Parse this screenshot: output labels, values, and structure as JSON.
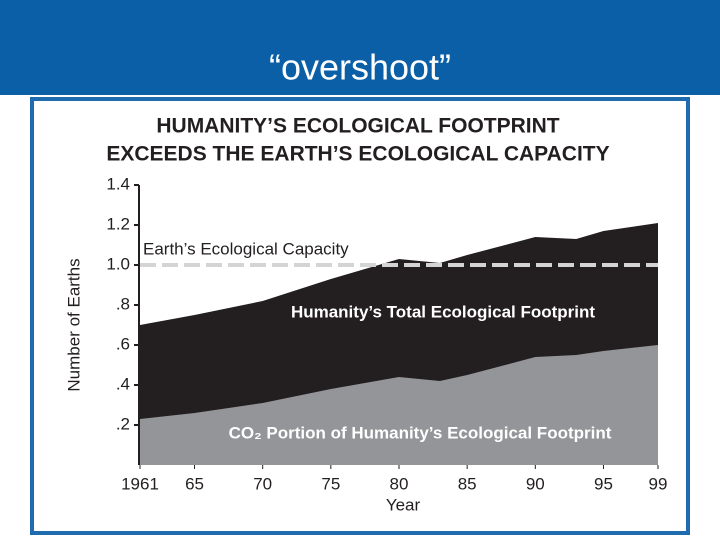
{
  "slide": {
    "title": "“overshoot”"
  },
  "chart_data": {
    "type": "area",
    "title": "HUMANITY’S ECOLOGICAL FOOTPRINT",
    "subtitle": "EXCEEDS THE EARTH’S ECOLOGICAL CAPACITY",
    "x_label": "Year",
    "y_label": "Number of Earths",
    "x": [
      1961,
      1965,
      1970,
      1975,
      1980,
      1983,
      1985,
      1990,
      1993,
      1995,
      1999
    ],
    "series": [
      {
        "name": "Humanity’s Total Ecological Footprint",
        "color": "#231f20",
        "values": [
          0.7,
          0.75,
          0.82,
          0.93,
          1.03,
          1.01,
          1.05,
          1.14,
          1.13,
          1.17,
          1.21
        ]
      },
      {
        "name": "CO₂ Portion of Humanity’s Ecological Footprint",
        "color": "#939598",
        "values": [
          0.23,
          0.26,
          0.31,
          0.38,
          0.44,
          0.42,
          0.45,
          0.54,
          0.55,
          0.57,
          0.6
        ]
      }
    ],
    "reference_line": {
      "label": "Earth’s Ecological Capacity",
      "value": 1,
      "color": "#d4d4d4"
    },
    "xlim": [
      1961,
      1999
    ],
    "ylim": [
      0,
      1.4
    ],
    "xticks": [
      1961,
      {
        "value": 1965,
        "label": "65"
      },
      {
        "value": 1970,
        "label": "70"
      },
      {
        "value": 1975,
        "label": "75"
      },
      {
        "value": 1980,
        "label": "80"
      },
      {
        "value": 1985,
        "label": "85"
      },
      {
        "value": 1990,
        "label": "90"
      },
      {
        "value": 1995,
        "label": "95"
      },
      {
        "value": 1999,
        "label": "99"
      }
    ],
    "yticks": [
      {
        "value": 0.2,
        "label": ".2"
      },
      {
        "value": 0.4,
        "label": ".4"
      },
      {
        "value": 0.6,
        "label": ".6"
      },
      {
        "value": 0.8,
        "label": ".8"
      },
      {
        "value": 1,
        "label": "1.0"
      },
      1.2,
      1.4
    ]
  }
}
